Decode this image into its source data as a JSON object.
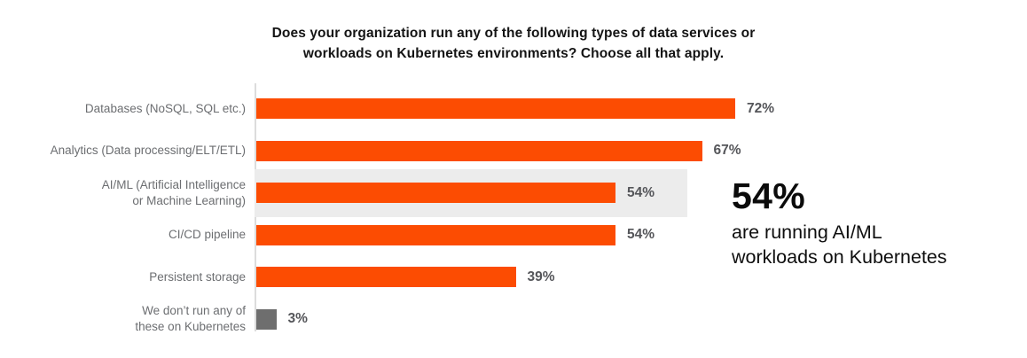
{
  "title": "Does your organization run any of the following types of data services or\nworkloads on Kubernetes environments? Choose all that apply.",
  "chart_data": {
    "type": "bar",
    "orientation": "horizontal",
    "title": "Does your organization run any of the following types of data services or workloads on Kubernetes environments? Choose all that apply.",
    "categories": [
      "Databases (NoSQL, SQL etc.)",
      "Analytics (Data processing/ELT/ETL)",
      "AI/ML (Artificial Intelligence\nor Machine Learning)",
      "CI/CD pipeline",
      "Persistent storage",
      "We don’t run any of\nthese on Kubernetes"
    ],
    "values": [
      72,
      67,
      54,
      54,
      39,
      3
    ],
    "value_labels": [
      "72%",
      "67%",
      "54%",
      "54%",
      "39%",
      "3%"
    ],
    "bar_colors": [
      "#fc4c02",
      "#fc4c02",
      "#fc4c02",
      "#fc4c02",
      "#fc4c02",
      "#6e6e6e"
    ],
    "highlight_index": 2,
    "highlight_color": "#ececec",
    "xlim": [
      0,
      100
    ],
    "value_suffix": "%",
    "grid": false,
    "legend": false
  },
  "callout": {
    "value": "54%",
    "text": "are running AI/ML\nworkloads on Kubernetes"
  },
  "colors": {
    "bar_orange": "#fc4c02",
    "bar_gray": "#6e6e6e",
    "highlight_band": "#ececec",
    "axis_line": "#dcdcdc",
    "category_label": "#6c6e71",
    "value_label": "#55565a",
    "title_text": "#141414",
    "callout_text": "#0b0b0b",
    "background": "#ffffff"
  }
}
